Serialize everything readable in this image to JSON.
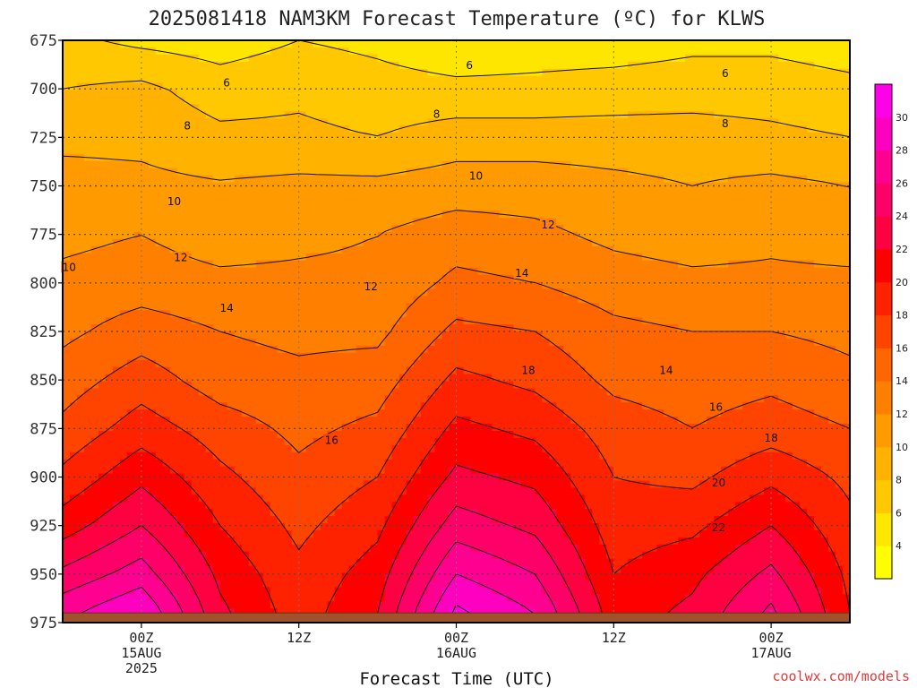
{
  "chart_data": {
    "type": "heatmap",
    "title": "2025081418 NAM3KM Forecast Temperature (ºC) for KLWS",
    "xlabel": "Forecast Time (UTC)",
    "ylabel": "",
    "credit": "coolwx.com/models",
    "x_hours_range": [
      -6,
      54
    ],
    "y_pressure_range": [
      675,
      975
    ],
    "y_ticks": [
      675,
      700,
      725,
      750,
      775,
      800,
      825,
      850,
      875,
      900,
      925,
      950,
      975
    ],
    "y_tick_labels": [
      "675",
      "700",
      "725",
      "750",
      "775",
      "800",
      "825",
      "850",
      "875",
      "900",
      "925",
      "950",
      "975"
    ],
    "x_ticks": [
      {
        "hour": 0,
        "lines": [
          "00Z",
          "15AUG",
          "2025"
        ]
      },
      {
        "hour": 12,
        "lines": [
          "12Z"
        ]
      },
      {
        "hour": 24,
        "lines": [
          "00Z",
          "16AUG"
        ]
      },
      {
        "hour": 36,
        "lines": [
          "12Z"
        ]
      },
      {
        "hour": 48,
        "lines": [
          "00Z",
          "17AUG"
        ]
      }
    ],
    "grid": true,
    "contour_levels": [
      4,
      6,
      8,
      10,
      12,
      14,
      16,
      18,
      20,
      22,
      24,
      26,
      28,
      30
    ],
    "colorbar": {
      "ticks": [
        "4",
        "6",
        "8",
        "10",
        "12",
        "14",
        "16",
        "18",
        "20",
        "22",
        "24",
        "26",
        "28",
        "30"
      ],
      "colors": [
        "#ffff00",
        "#ffe600",
        "#ffc800",
        "#ffb200",
        "#ff9a00",
        "#ff8000",
        "#ff6600",
        "#ff4400",
        "#ff2200",
        "#ff0000",
        "#ff0040",
        "#ff0068",
        "#ff0090",
        "#ff00c0",
        "#ff00e8"
      ]
    },
    "ground_color": "#a0522d",
    "ground_level_hpa": 970,
    "temperature_samples": {
      "hours": [
        -6,
        0,
        6,
        12,
        18,
        24,
        30,
        36,
        42,
        48,
        54
      ],
      "levels_hpa": [
        675,
        700,
        725,
        750,
        775,
        800,
        825,
        850,
        875,
        900,
        925,
        950,
        970
      ],
      "values": [
        [
          6.5,
          5.5,
          5.0,
          6.0,
          5.5,
          4.5,
          5.0,
          5.0,
          5.5,
          5.5,
          5.0
        ],
        [
          8.0,
          8.5,
          7.0,
          7.5,
          6.8,
          6.5,
          6.5,
          6.8,
          7.0,
          7.0,
          6.5
        ],
        [
          9.5,
          9.5,
          8.5,
          8.5,
          8.0,
          9.0,
          9.0,
          9.0,
          9.0,
          8.5,
          8.0
        ],
        [
          10.8,
          10.5,
          10.2,
          10.5,
          10.5,
          11.0,
          11.0,
          10.5,
          10.0,
          10.5,
          10.0
        ],
        [
          11.5,
          12.0,
          11.0,
          11.5,
          12.0,
          13.0,
          12.5,
          11.5,
          11.0,
          11.5,
          11.0
        ],
        [
          12.5,
          13.0,
          12.5,
          12.5,
          12.5,
          14.5,
          14.0,
          13.0,
          12.5,
          12.5,
          12.5
        ],
        [
          13.5,
          15.0,
          14.0,
          13.5,
          13.5,
          16.5,
          16.0,
          14.5,
          14.0,
          14.0,
          13.5
        ],
        [
          15.0,
          17.0,
          15.0,
          14.5,
          15.0,
          18.5,
          17.5,
          15.5,
          15.0,
          15.5,
          14.5
        ],
        [
          16.5,
          19.0,
          17.0,
          15.5,
          16.5,
          20.5,
          19.5,
          17.0,
          16.0,
          17.0,
          16.0
        ],
        [
          18.5,
          21.5,
          18.5,
          16.5,
          18.0,
          22.5,
          21.5,
          18.0,
          17.5,
          19.5,
          17.5
        ],
        [
          21.0,
          24.0,
          20.0,
          17.5,
          19.5,
          25.0,
          23.5,
          19.0,
          19.5,
          22.0,
          18.5
        ],
        [
          24.5,
          27.0,
          21.5,
          18.5,
          21.0,
          28.0,
          26.0,
          20.0,
          21.5,
          24.5,
          19.5
        ],
        [
          27.5,
          30.0,
          22.5,
          19.0,
          22.0,
          30.5,
          28.0,
          21.0,
          22.5,
          26.5,
          20.0
        ]
      ]
    },
    "contour_labels": [
      {
        "text": "6",
        "hour": 6.5,
        "hpa": 697
      },
      {
        "text": "6",
        "hour": 25,
        "hpa": 688
      },
      {
        "text": "6",
        "hour": 44.5,
        "hpa": 692
      },
      {
        "text": "8",
        "hour": 3.5,
        "hpa": 719
      },
      {
        "text": "8",
        "hour": 22.5,
        "hpa": 713
      },
      {
        "text": "8",
        "hour": 44.5,
        "hpa": 718
      },
      {
        "text": "10",
        "hour": 2.5,
        "hpa": 758
      },
      {
        "text": "10",
        "hour": -5.5,
        "hpa": 792
      },
      {
        "text": "10",
        "hour": 25.5,
        "hpa": 745
      },
      {
        "text": "12",
        "hour": 3,
        "hpa": 787
      },
      {
        "text": "12",
        "hour": 17.5,
        "hpa": 802
      },
      {
        "text": "12",
        "hour": 31,
        "hpa": 770
      },
      {
        "text": "14",
        "hour": 6.5,
        "hpa": 813
      },
      {
        "text": "14",
        "hour": 29,
        "hpa": 795
      },
      {
        "text": "14",
        "hour": 40,
        "hpa": 845
      },
      {
        "text": "16",
        "hour": 14.5,
        "hpa": 881
      },
      {
        "text": "16",
        "hour": 43.8,
        "hpa": 864
      },
      {
        "text": "18",
        "hour": 29.5,
        "hpa": 845
      },
      {
        "text": "18",
        "hour": 48,
        "hpa": 880
      },
      {
        "text": "20",
        "hour": 44,
        "hpa": 903
      },
      {
        "text": "22",
        "hour": 44,
        "hpa": 926
      }
    ]
  }
}
